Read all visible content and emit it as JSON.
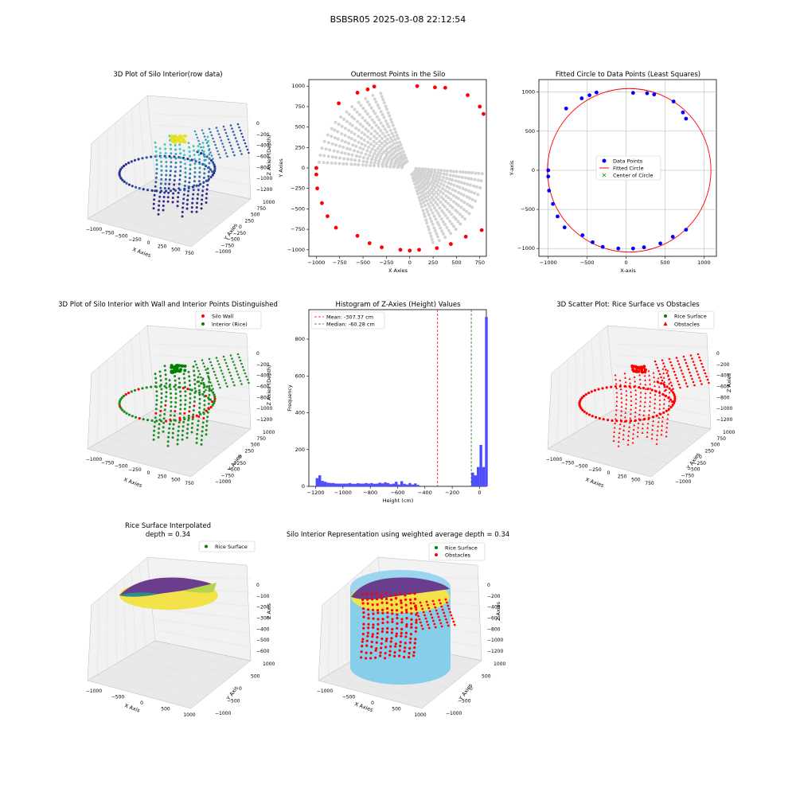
{
  "figure": {
    "suptitle": "BSBSR05 2025-03-08 22:12:54"
  },
  "colors": {
    "silo_wall": "#ff0000",
    "interior": "#008000",
    "data_points": "#0000ff",
    "fitted_circle": "#ff0000",
    "center": "#008000",
    "outer": "#ff0000",
    "all_points": "#d3d3d3",
    "hist_bars": "#4d4dff",
    "cylinder": "#87ceeb",
    "surf_a": "#6a3d8f",
    "surf_b": "#f4e24a"
  },
  "panels": {
    "p1": {
      "title": "3D Plot of Silo Interior(row data)",
      "xlabel": "X Axies",
      "ylabel": "Y Axies",
      "zlabel": "Z Axies (Depth)",
      "xticks": [
        "−1000",
        "−750",
        "−500",
        "−250",
        "0",
        "250",
        "500",
        "750"
      ],
      "yticks": [
        "−1000",
        "−750",
        "−500",
        "−250",
        "0",
        "250",
        "500",
        "750",
        "1000"
      ],
      "zticks": [
        "0",
        "−200",
        "−400",
        "−600",
        "−800",
        "−1000",
        "−1200"
      ]
    },
    "p2": {
      "title": "Outermost Points in the Silo",
      "xlabel": "X Axies",
      "ylabel": "Y Axies",
      "xticks": [
        "−1000",
        "−750",
        "−500",
        "−250",
        "0",
        "250",
        "500",
        "750"
      ],
      "yticks": [
        "1000",
        "750",
        "500",
        "250",
        "0",
        "−250",
        "−500",
        "−750",
        "−1000"
      ]
    },
    "p3": {
      "title": "Fitted Circle to Data Points (Least Squares)",
      "xlabel": "X-axis",
      "ylabel": "Y-axis",
      "xticks": [
        "−1000",
        "−500",
        "0",
        "500",
        "1000"
      ],
      "yticks": [
        "1000",
        "500",
        "0",
        "−500",
        "−1000"
      ],
      "legend": [
        "Data Points",
        "Fitted Circle",
        "Center of Circle"
      ]
    },
    "p4": {
      "title": "3D Plot of Silo Interior with Wall and Interior Points Distinguished",
      "xlabel": "X Axies",
      "ylabel": "Y Axies",
      "zlabel": "Z Axies (Depth)",
      "xticks": [
        "−1000",
        "−750",
        "−500",
        "−250",
        "0",
        "250",
        "500",
        "750"
      ],
      "yticks": [
        "−1000",
        "−750",
        "−500",
        "−250",
        "0",
        "250",
        "500",
        "750",
        "1000"
      ],
      "zticks": [
        "0",
        "−200",
        "−400",
        "−600",
        "−800",
        "−1000",
        "−1200"
      ],
      "legend": [
        "Silo Wall",
        "Interior (Rice)"
      ]
    },
    "p5": {
      "title": "Histogram of Z-Axies (Height) Values",
      "xlabel": "Height (cm)",
      "ylabel": "Frequency",
      "xticks": [
        "−1200",
        "−1000",
        "−800",
        "−600",
        "−400",
        "−200",
        "0"
      ],
      "yticks": [
        "0",
        "200",
        "400",
        "600",
        "800"
      ],
      "legend": [
        "Mean: -307.37 cm",
        "Median: -60.28 cm"
      ]
    },
    "p6": {
      "title": "3D Scatter Plot: Rice Surface vs Obstacles",
      "xlabel": "X Axies",
      "ylabel": "Y Axies",
      "zlabel": "Z Axies",
      "xticks": [
        "−1000",
        "−750",
        "−500",
        "−250",
        "0",
        "250",
        "500",
        "750"
      ],
      "yticks": [
        "−1000",
        "−750",
        "−500",
        "−250",
        "0",
        "250",
        "500",
        "750",
        "1000"
      ],
      "zticks": [
        "0",
        "−200",
        "−400",
        "−600",
        "−800",
        "−1000",
        "−1200"
      ],
      "legend": [
        "Rice Surface",
        "Obstacles"
      ]
    },
    "p7": {
      "title_line1": "Rice Surface Interpolated",
      "title_line2": "depth = 0.34",
      "xlabel": "X Axis",
      "ylabel": "Y Axis",
      "zlabel": "Z Axis",
      "xticks": [
        "−1000",
        "−500",
        "0",
        "500",
        "1000"
      ],
      "yticks": [
        "−1000",
        "−500",
        "0",
        "500",
        "1000"
      ],
      "zticks": [
        "0",
        "−100",
        "−200",
        "−300",
        "−400",
        "−500",
        "−600"
      ],
      "legend": [
        "Rice Surface"
      ]
    },
    "p8": {
      "title": "Silo Interior Representation using weighted average depth = 0.34",
      "xlabel": "X Axies",
      "ylabel": "Y Axies",
      "zlabel": "Z Axies",
      "xticks": [
        "−1000",
        "−500",
        "0",
        "500",
        "1000"
      ],
      "yticks": [
        "−1000",
        "−500",
        "0",
        "500",
        "1000"
      ],
      "zticks": [
        "0",
        "−200",
        "−400",
        "−600",
        "−800",
        "−1000",
        "−1200"
      ],
      "legend": [
        "Rice Surface",
        "Obstacles"
      ]
    }
  },
  "chart_data": [
    {
      "type": "scatter",
      "title": "Outermost Points in the Silo",
      "xlabel": "X Axies",
      "ylabel": "Y Axies",
      "xlim": [
        -1080,
        820
      ],
      "ylim": [
        -1080,
        1080
      ],
      "series": [
        {
          "values_xy": [
            [
              -1000,
              0
            ],
            [
              -1000,
              -80
            ],
            [
              -990,
              -250
            ],
            [
              -940,
              -430
            ],
            [
              -880,
              -590
            ],
            [
              -790,
              -730
            ],
            [
              -560,
              -830
            ],
            [
              -430,
              -920
            ],
            [
              -300,
              -970
            ],
            [
              -100,
              -1000
            ],
            [
              0,
              -1010
            ],
            [
              100,
              -1000
            ],
            [
              290,
              -980
            ],
            [
              440,
              -930
            ],
            [
              600,
              -840
            ],
            [
              770,
              -760
            ],
            [
              -760,
              790
            ],
            [
              -560,
              920
            ],
            [
              -450,
              960
            ],
            [
              -380,
              995
            ],
            [
              80,
              1000
            ],
            [
              270,
              985
            ],
            [
              380,
              980
            ],
            [
              620,
              890
            ],
            [
              750,
              750
            ],
            [
              790,
              660
            ]
          ]
        }
      ]
    },
    {
      "type": "scatter",
      "title": "Fitted Circle to Data Points (Least Squares)",
      "xlabel": "X-axis",
      "ylabel": "Y-axis",
      "xlim": [
        -1120,
        1160
      ],
      "ylim": [
        -1100,
        1160
      ],
      "series": [
        {
          "name": "Data Points",
          "values_xy": [
            [
              -1000,
              0
            ],
            [
              -1000,
              -80
            ],
            [
              -990,
              -260
            ],
            [
              -940,
              -430
            ],
            [
              -880,
              -590
            ],
            [
              -790,
              -730
            ],
            [
              -560,
              -830
            ],
            [
              -430,
              -920
            ],
            [
              -300,
              -980
            ],
            [
              -100,
              -1000
            ],
            [
              90,
              -1000
            ],
            [
              230,
              -985
            ],
            [
              440,
              -935
            ],
            [
              600,
              -850
            ],
            [
              770,
              -760
            ],
            [
              -770,
              790
            ],
            [
              -570,
              920
            ],
            [
              -470,
              960
            ],
            [
              -380,
              995
            ],
            [
              90,
              990
            ],
            [
              270,
              985
            ],
            [
              360,
              970
            ],
            [
              610,
              880
            ],
            [
              730,
              740
            ],
            [
              770,
              660
            ]
          ]
        },
        {
          "name": "Fitted Circle",
          "center": [
            40,
            0
          ],
          "radius": 1050
        },
        {
          "name": "Center of Circle",
          "values_xy": []
        }
      ]
    },
    {
      "type": "bar",
      "title": "Histogram of Z-Axies (Height) Values",
      "xlabel": "Height (cm)",
      "ylabel": "Frequency",
      "xlim": [
        -1250,
        50
      ],
      "ylim": [
        0,
        960
      ],
      "bin_start": -1200,
      "bin_width": 20,
      "values": [
        45,
        60,
        30,
        25,
        20,
        18,
        18,
        15,
        15,
        15,
        15,
        15,
        18,
        14,
        14,
        17,
        15,
        15,
        18,
        15,
        18,
        14,
        15,
        20,
        16,
        22,
        18,
        12,
        15,
        25,
        10,
        28,
        14,
        10,
        18,
        10,
        16,
        8,
        0,
        0,
        0,
        0,
        0,
        0,
        0,
        0,
        0,
        0,
        0,
        0,
        0,
        0,
        0,
        0,
        0,
        0,
        0,
        75,
        60,
        105,
        225,
        105,
        920
      ],
      "mean": -307.37,
      "median": -60.28
    }
  ]
}
